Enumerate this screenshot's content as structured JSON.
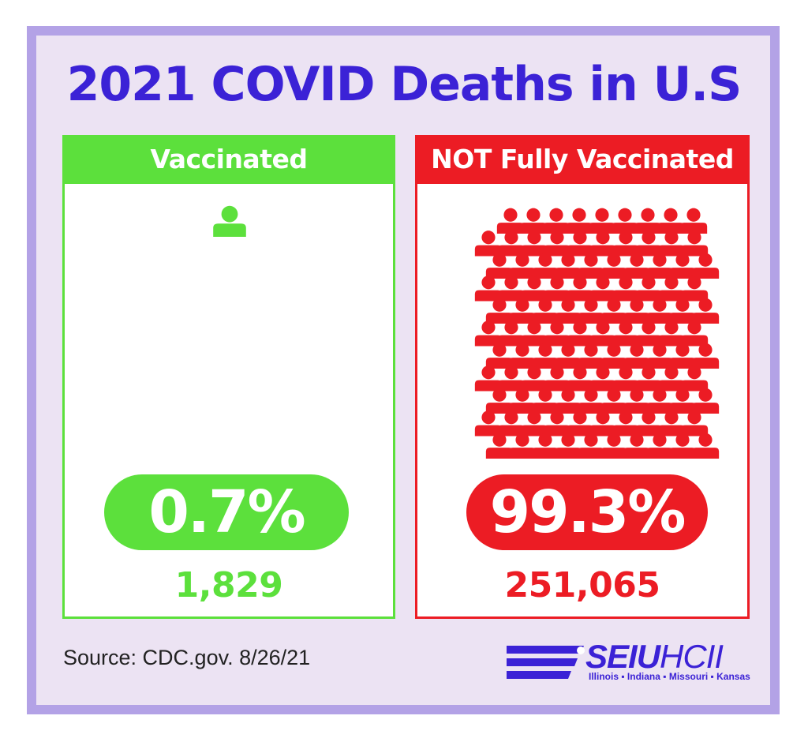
{
  "title": "2021 COVID Deaths in U.S",
  "colors": {
    "vaccinated": "#5ce03c",
    "unvaccinated": "#ec1c24",
    "title": "#3b22d6",
    "border": "#b3a2e6"
  },
  "chart_data": {
    "type": "pictograph",
    "title": "2021 COVID Deaths in U.S",
    "categories": [
      "Vaccinated",
      "NOT Fully Vaccinated"
    ],
    "series": [
      {
        "values_percent": [
          0.7,
          99.3
        ],
        "values_count": [
          1829,
          251065
        ]
      }
    ],
    "icons": [
      1,
      140
    ]
  },
  "vaccinated": {
    "label": "Vaccinated",
    "percent": "0.7%",
    "count": "1,829",
    "icon": "person-icon"
  },
  "unvaccinated": {
    "label": "NOT Fully Vaccinated",
    "percent": "99.3%",
    "count": "251,065",
    "icon": "person-icon"
  },
  "source": "Source: CDC.gov. 8/26/21",
  "logo": {
    "name_bold": "SEIU",
    "name_light": "HCII",
    "states": "Illinois ▪ Indiana ▪ Missouri ▪ Kansas"
  }
}
